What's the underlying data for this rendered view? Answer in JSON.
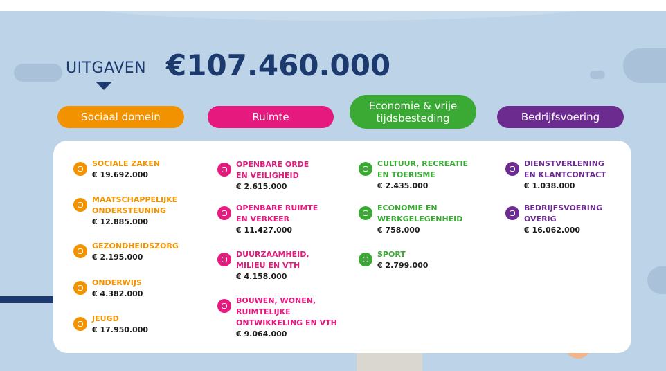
{
  "header": {
    "label": "UITGAVEN",
    "total": "€107.460.000"
  },
  "columns": [
    {
      "title": [
        "Sociaal domein"
      ],
      "items": [
        {
          "name": [
            "SOCIALE ZAKEN"
          ],
          "amount": "€ 19.692.000"
        },
        {
          "name": [
            "MAATSCHAPPELIJKE",
            "ONDERSTEUNING"
          ],
          "amount": "€ 12.885.000"
        },
        {
          "name": [
            "GEZONDHEIDSZORG"
          ],
          "amount": "€ 2.195.000"
        },
        {
          "name": [
            "ONDERWIJS"
          ],
          "amount": "€ 4.382.000"
        },
        {
          "name": [
            "JEUGD"
          ],
          "amount": "€ 17.950.000"
        }
      ]
    },
    {
      "title": [
        "Ruimte"
      ],
      "items": [
        {
          "name": [
            "OPENBARE ORDE",
            "EN VEILIGHEID"
          ],
          "amount": "€ 2.615.000"
        },
        {
          "name": [
            "OPENBARE RUIMTE",
            "EN VERKEER"
          ],
          "amount": "€ 11.427.000"
        },
        {
          "name": [
            "DUURZAAMHEID,",
            "MILIEU EN VTH"
          ],
          "amount": "€ 4.158.000"
        },
        {
          "name": [
            "BOUWEN, WONEN,",
            "RUIMTELIJKE",
            "ONTWIKKELING EN VTH"
          ],
          "amount": "€ 9.064.000"
        }
      ]
    },
    {
      "title": [
        "Economie & vrije",
        "tijdsbesteding"
      ],
      "items": [
        {
          "name": [
            "CULTUUR, RECREATIE",
            "EN TOERISME"
          ],
          "amount": "€ 2.435.000"
        },
        {
          "name": [
            "ECONOMIE EN",
            "WERKGELEGENHEID"
          ],
          "amount": "€ 758.000"
        },
        {
          "name": [
            "SPORT"
          ],
          "amount": "€ 2.799.000"
        }
      ]
    },
    {
      "title": [
        "Bedrijfsvoering"
      ],
      "items": [
        {
          "name": [
            "DIENSTVERLENING",
            "EN KLANTCONTACT"
          ],
          "amount": "€ 1.038.000"
        },
        {
          "name": [
            "BEDRIJFSVOERING",
            "OVERIG"
          ],
          "amount": "€ 16.062.000"
        }
      ]
    }
  ]
}
